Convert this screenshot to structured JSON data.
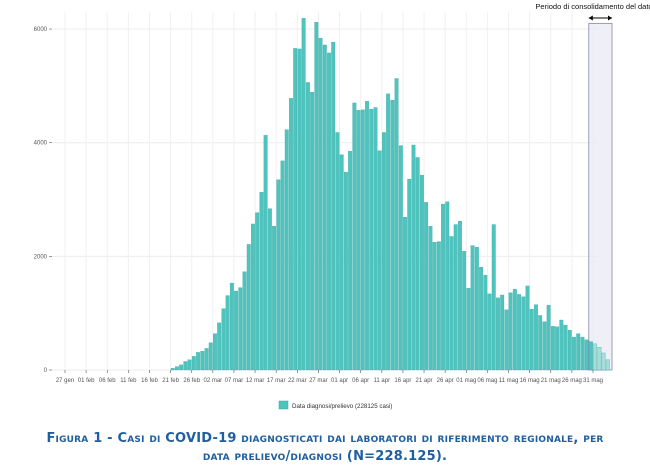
{
  "chart_data": {
    "type": "bar",
    "title": "",
    "xlabel": "",
    "ylabel": "",
    "ylim": [
      0,
      6300
    ],
    "yticks": [
      0,
      2000,
      4000,
      6000
    ],
    "ytick_labels": [
      "0",
      "2000",
      "4000",
      "6000"
    ],
    "xtick_labels": [
      "27 gen",
      "01 feb",
      "06 feb",
      "11 feb",
      "16 feb",
      "21 feb",
      "26 feb",
      "02 mar",
      "07 mar",
      "12 mar",
      "17 mar",
      "22 mar",
      "27 mar",
      "01 apr",
      "06 apr",
      "11 apr",
      "16 apr",
      "21 apr",
      "26 apr",
      "01 mag",
      "06 mag",
      "11 mag",
      "16 mag",
      "21 mag",
      "26 mag",
      "31 mag"
    ],
    "series": [
      {
        "name": "Data diagnosi/prelievo (228125 casi)",
        "color": "#4fc3bd",
        "start_label": "21 feb",
        "values": [
          30,
          60,
          90,
          150,
          180,
          240,
          310,
          330,
          380,
          480,
          640,
          830,
          1080,
          1310,
          1530,
          1390,
          1450,
          1730,
          2210,
          2570,
          2770,
          3130,
          4130,
          2840,
          2530,
          3350,
          3680,
          4230,
          4780,
          5660,
          5650,
          6190,
          5060,
          4890,
          6120,
          5840,
          5720,
          5580,
          5770,
          4180,
          3790,
          3480,
          3850,
          4700,
          4570,
          4580,
          4730,
          4590,
          4620,
          3860,
          4180,
          4860,
          4750,
          5130,
          3950,
          2690,
          3360,
          3960,
          3740,
          3430,
          2950,
          2530,
          2250,
          2260,
          2920,
          2960,
          2350,
          2560,
          2620,
          2090,
          1440,
          2190,
          2160,
          1810,
          1670,
          1340,
          2560,
          1270,
          1320,
          1060,
          1360,
          1420,
          1330,
          1290,
          1480,
          1070,
          1150,
          960,
          850,
          1140,
          770,
          760,
          880,
          790,
          700,
          580,
          640,
          580,
          530,
          500,
          460,
          400,
          300,
          180
        ]
      }
    ],
    "legend": {
      "label": "Data diagnosi/prelievo (228125 casi)",
      "position": "bottom"
    },
    "annotation": {
      "text": "Periodo di consolidamento del dato"
    }
  },
  "caption": {
    "line1": "Figura 1 - Casi di COVID-19 diagnosticati dai laboratori di riferimento regionale, per",
    "line2": "data prelievo/diagnosi (N=228.125)."
  },
  "colors": {
    "bar": "#4fc3bd",
    "bar_stroke": "#3aa8a2",
    "caption": "#1f5fa0",
    "shade": "#e8e8f4",
    "shade_border": "#8888aa"
  }
}
